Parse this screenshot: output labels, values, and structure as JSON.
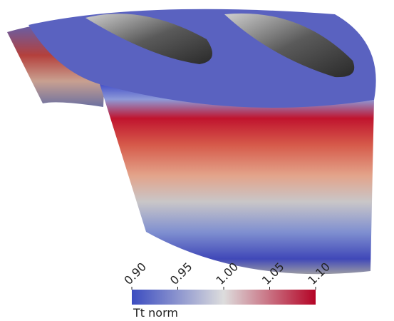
{
  "colorbar": {
    "label": "Tt norm",
    "lim": [
      0.9,
      1.1
    ],
    "ticks": [
      {
        "value": 0.9,
        "label": "0.90"
      },
      {
        "value": 0.95,
        "label": "0.95"
      },
      {
        "value": 1.0,
        "label": "1.00"
      },
      {
        "value": 1.05,
        "label": "1.05"
      },
      {
        "value": 1.1,
        "label": "1.10"
      }
    ],
    "colors": [
      "#3b4cc0",
      "#dddddd",
      "#b40426"
    ]
  }
}
